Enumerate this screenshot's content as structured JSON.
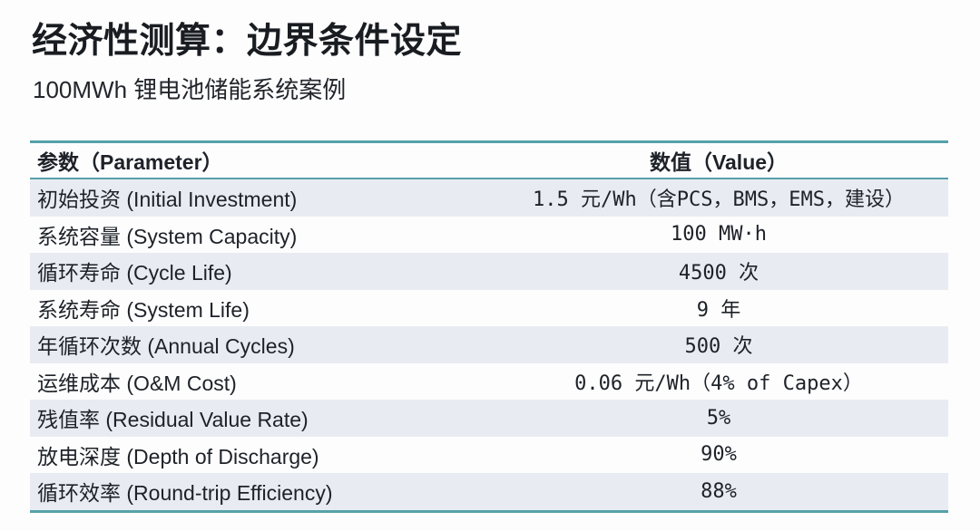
{
  "page": {
    "title": "经济性测算：边界条件设定",
    "subtitle": "100MWh 锂电池储能系统案例"
  },
  "table": {
    "headers": {
      "parameter": "参数（Parameter）",
      "value": "数值（Value）"
    },
    "rows": [
      {
        "param": "初始投资 (Initial Investment)",
        "value": "1.5 元/Wh（含PCS，BMS，EMS，建设）"
      },
      {
        "param": "系统容量 (System Capacity)",
        "value": "100 MW·h"
      },
      {
        "param": "循环寿命 (Cycle Life)",
        "value": "4500 次"
      },
      {
        "param": "系统寿命 (System Life)",
        "value": "9 年"
      },
      {
        "param": "年循环次数 (Annual Cycles)",
        "value": "500 次"
      },
      {
        "param": "运维成本 (O&M Cost)",
        "value": "0.06 元/Wh（4% of Capex）"
      },
      {
        "param": "残值率 (Residual Value Rate)",
        "value": "5%"
      },
      {
        "param": "放电深度 (Depth of Discharge)",
        "value": "90%"
      },
      {
        "param": "循环效率 (Round-trip Efficiency)",
        "value": "88%"
      }
    ]
  },
  "colors": {
    "accent_teal": "#55a1aa",
    "alt_row_bg": "#e8ecf2",
    "text": "#1e2228",
    "background": "#fdfdfe"
  }
}
